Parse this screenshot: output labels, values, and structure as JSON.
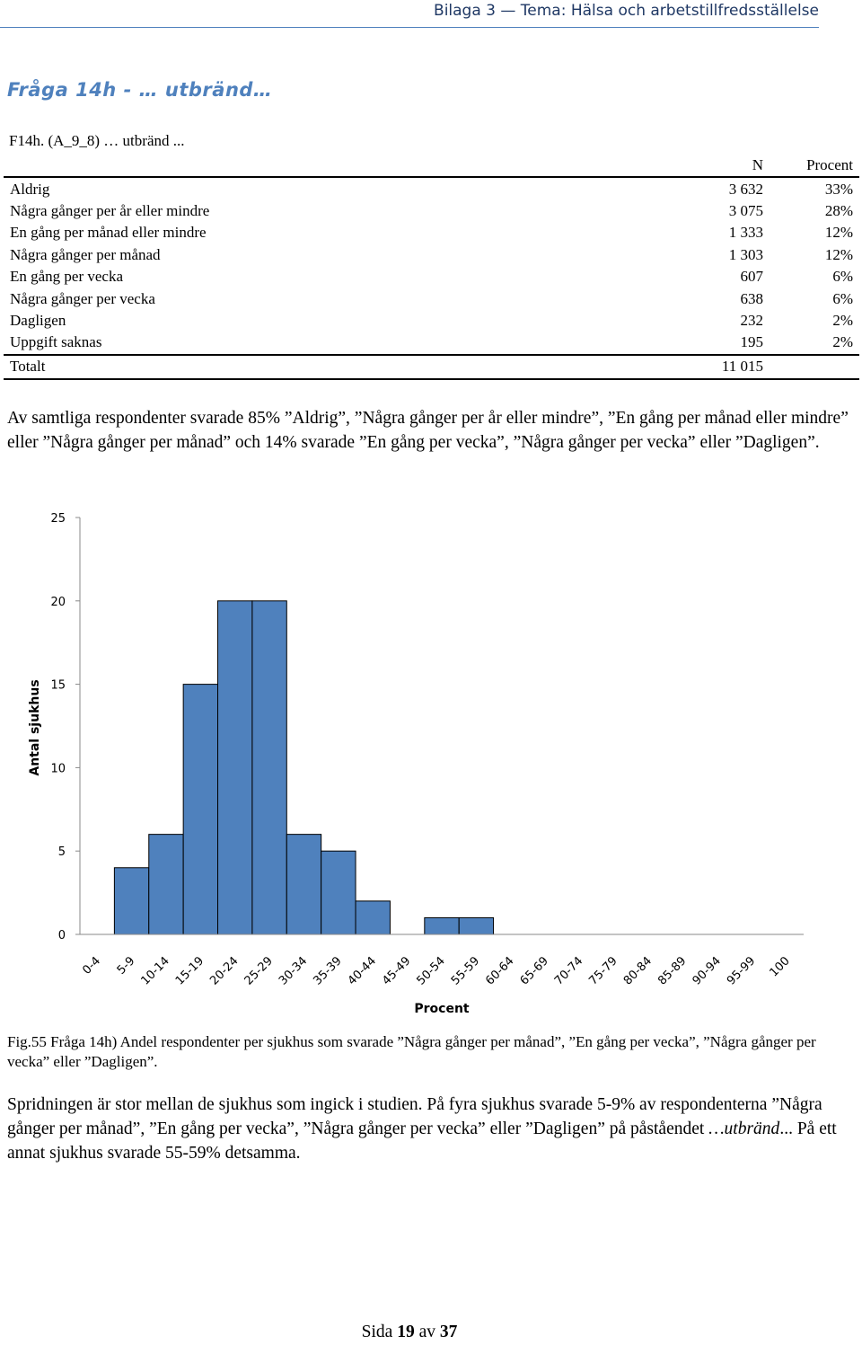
{
  "header": {
    "text": "Bilaga 3 — Tema: Hälsa och arbetstillfredsställelse"
  },
  "question_title": "Fråga 14h - … utbränd…",
  "table": {
    "caption": "F14h. (A_9_8) … utbränd ...",
    "col_n": "N",
    "col_pct": "Procent",
    "rows": [
      {
        "label": "Aldrig",
        "n": "3 632",
        "pct": "33%"
      },
      {
        "label": "Några gånger per år eller mindre",
        "n": "3 075",
        "pct": "28%"
      },
      {
        "label": "En gång per månad eller mindre",
        "n": "1 333",
        "pct": "12%"
      },
      {
        "label": "Några gånger per månad",
        "n": "1 303",
        "pct": "12%"
      },
      {
        "label": "En gång per vecka",
        "n": "607",
        "pct": "6%"
      },
      {
        "label": "Några gånger per vecka",
        "n": "638",
        "pct": "6%"
      },
      {
        "label": "Dagligen",
        "n": "232",
        "pct": "2%"
      },
      {
        "label": "Uppgift saknas",
        "n": "195",
        "pct": "2%"
      }
    ],
    "total": {
      "label": "Totalt",
      "n": "11 015",
      "pct": ""
    }
  },
  "paragraph1": "Av samtliga respondenter svarade 85% ”Aldrig”, ”Några gånger per år eller mindre”, ”En gång per månad eller mindre” eller ”Några gånger per månad” och 14% svarade ”En gång per vecka”, ”Några gånger per vecka” eller ”Dagligen”.",
  "chart_data": {
    "type": "bar",
    "categories": [
      "0-4",
      "5-9",
      "10-14",
      "15-19",
      "20-24",
      "25-29",
      "30-34",
      "35-39",
      "40-44",
      "45-49",
      "50-54",
      "55-59",
      "60-64",
      "65-69",
      "70-74",
      "75-79",
      "80-84",
      "85-89",
      "90-94",
      "95-99",
      "100"
    ],
    "values": [
      0,
      4,
      6,
      15,
      20,
      20,
      6,
      5,
      2,
      0,
      1,
      1,
      0,
      0,
      0,
      0,
      0,
      0,
      0,
      0,
      0
    ],
    "xlabel": "Procent",
    "ylabel": "Antal sjukhus",
    "ylim": [
      0,
      25
    ],
    "yticks": [
      0,
      5,
      10,
      15,
      20,
      25
    ],
    "bar_color": "#4f81bd",
    "grid": false
  },
  "figure_caption": "Fig.55 Fråga 14h) Andel respondenter per sjukhus som svarade ”Några gånger per månad”, ”En gång per vecka”, ”Några gånger per vecka” eller ”Dagligen”.",
  "paragraph2": {
    "part1": "Spridningen är stor mellan de sjukhus som ingick i studien. På fyra sjukhus svarade 5-9% av respondenterna ”Några gånger per månad”, ”En gång per vecka”, ”Några gånger per vecka” eller ”Dagligen” på påståendet ",
    "italic": "…utbränd",
    "part2": "... På ett annat sjukhus svarade 55-59% detsamma."
  },
  "footer": {
    "prefix": "Sida",
    "page": "19",
    "middle": "av",
    "total": "37"
  }
}
